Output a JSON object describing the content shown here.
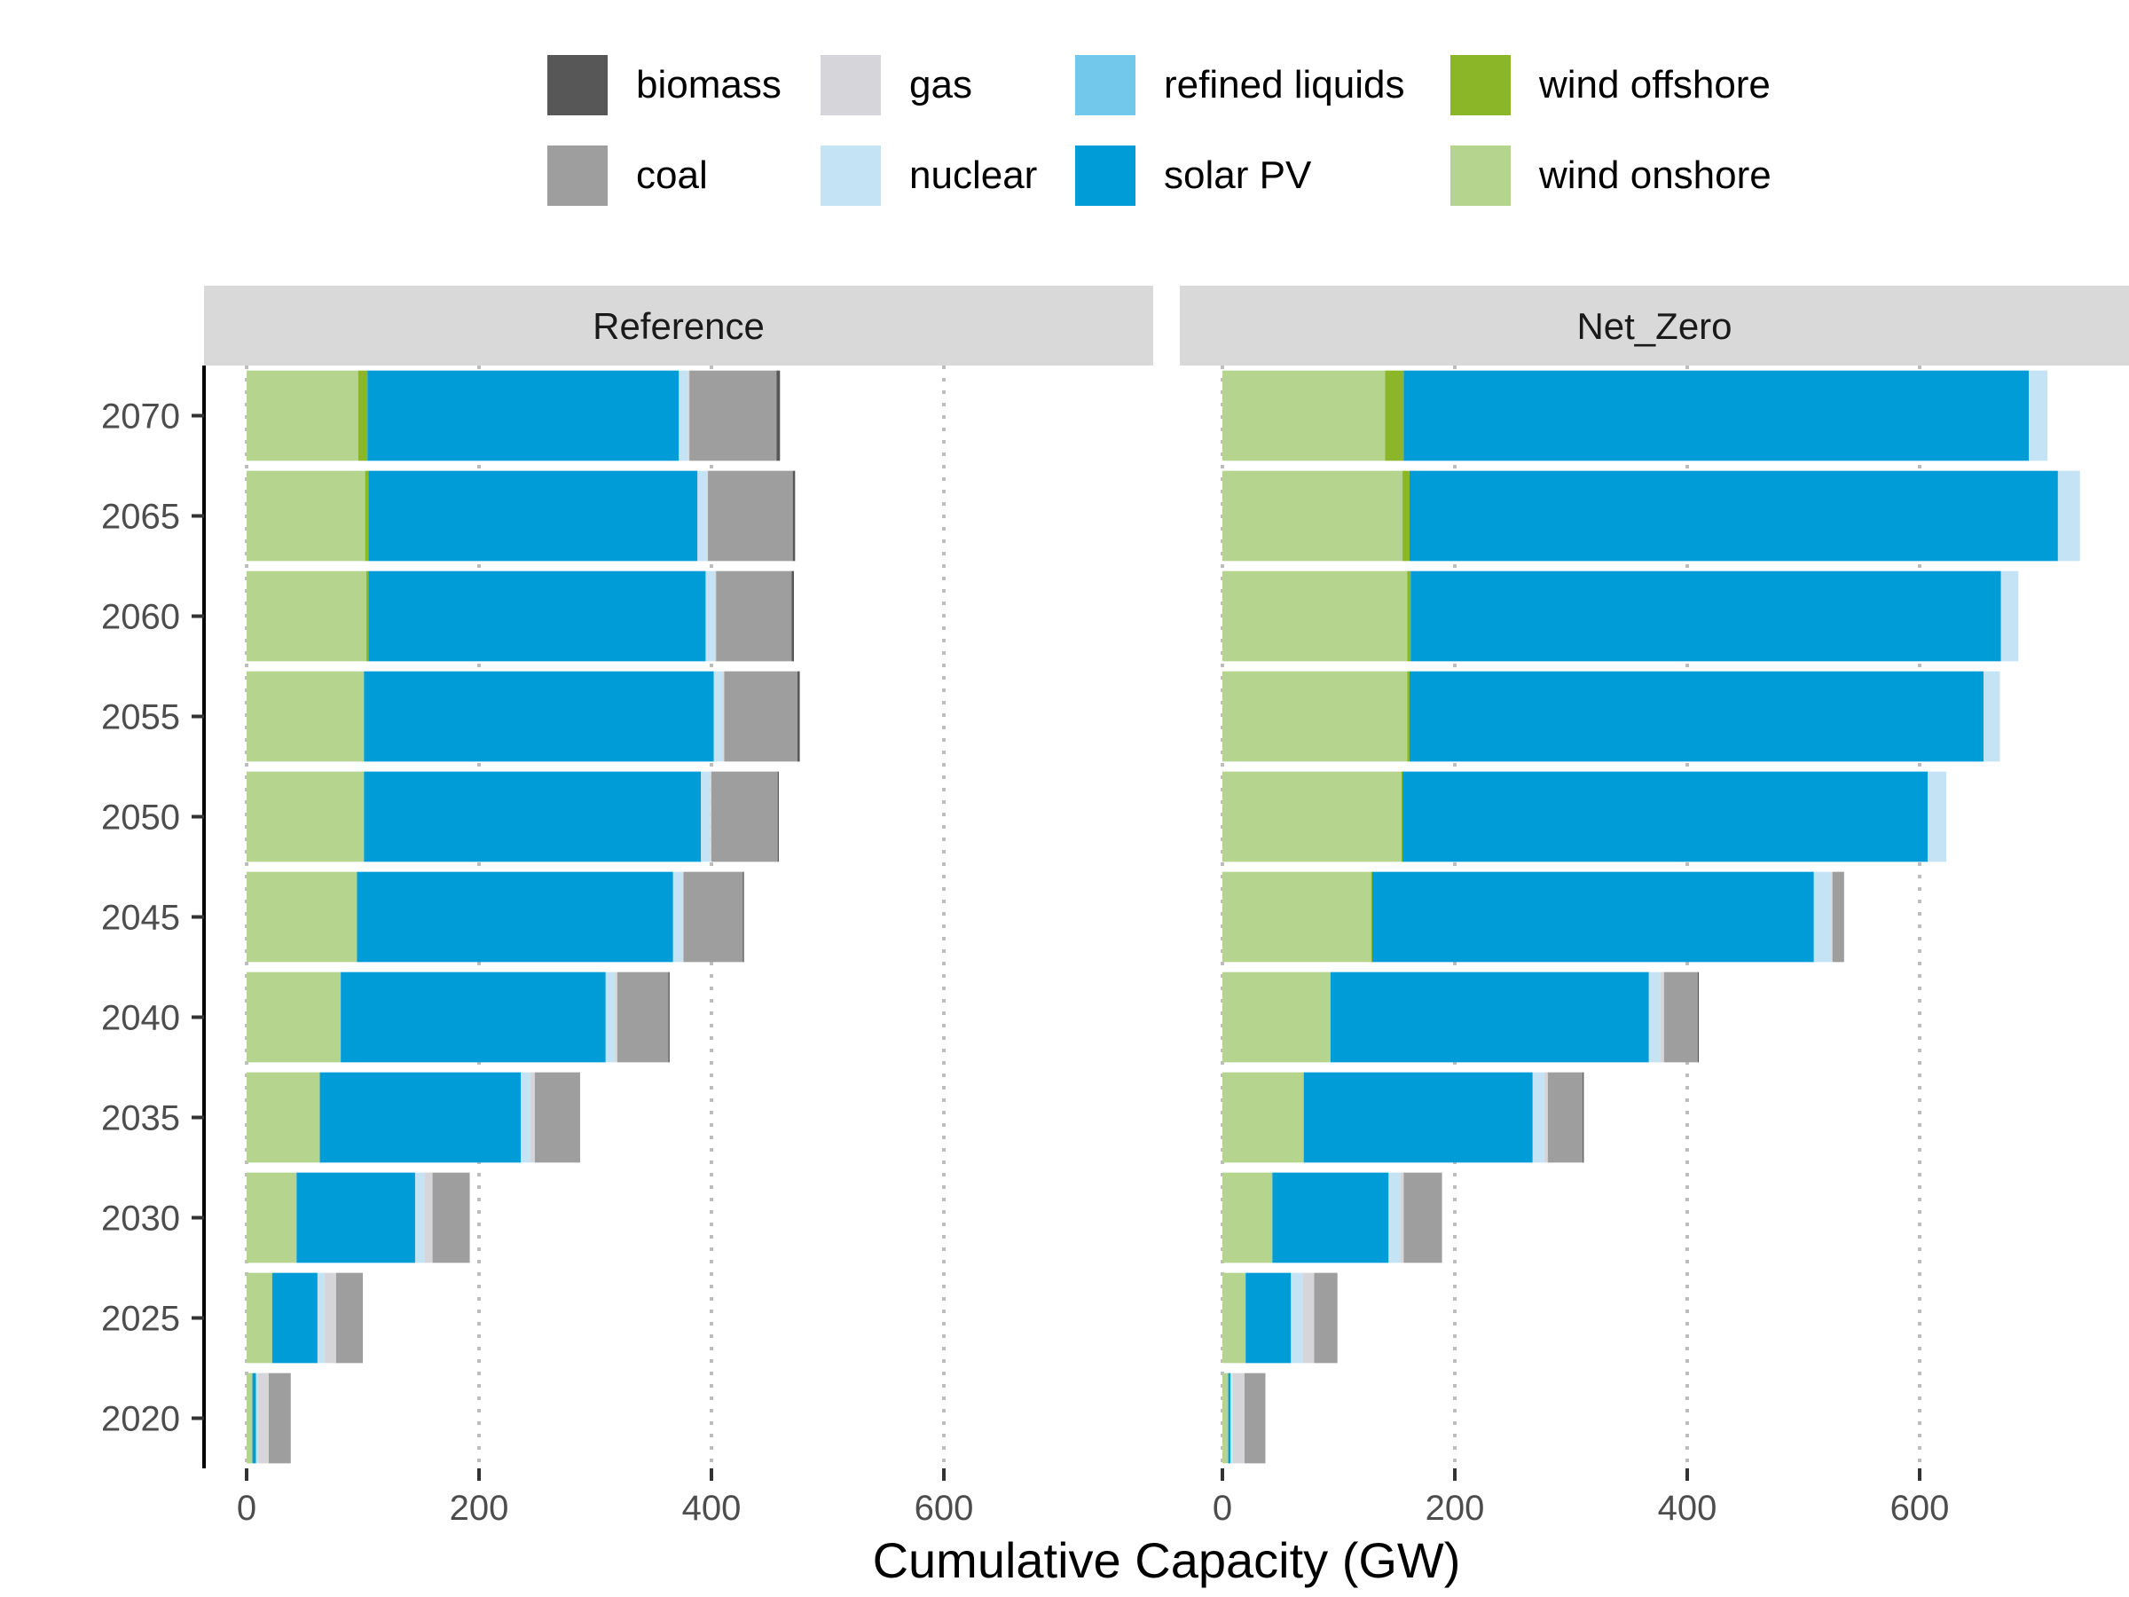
{
  "chart_data": {
    "type": "bar",
    "orientation": "horizontal",
    "stacked": true,
    "xlabel": "Cumulative Capacity (GW)",
    "ylabel": "",
    "xlim": [
      0,
      755
    ],
    "x_ticks": [
      "0",
      "200",
      "400",
      "600"
    ],
    "categories": [
      "2020",
      "2025",
      "2030",
      "2035",
      "2040",
      "2045",
      "2050",
      "2055",
      "2060",
      "2065",
      "2070"
    ],
    "grid": "vertical dotted",
    "legend_position": "top",
    "legend": [
      {
        "name": "biomass",
        "color": "#575757"
      },
      {
        "name": "coal",
        "color": "#9e9e9e"
      },
      {
        "name": "gas",
        "color": "#d6d6da"
      },
      {
        "name": "nuclear",
        "color": "#c4e4f5"
      },
      {
        "name": "refined liquids",
        "color": "#72c8ea"
      },
      {
        "name": "solar PV",
        "color": "#009cd8"
      },
      {
        "name": "wind offshore",
        "color": "#8ab627"
      },
      {
        "name": "wind onshore",
        "color": "#b5d58e"
      }
    ],
    "stack_order": [
      "wind onshore",
      "wind offshore",
      "solar PV",
      "refined liquids",
      "nuclear",
      "gas",
      "coal",
      "biomass"
    ],
    "panels": [
      {
        "title": "Reference",
        "series": [
          {
            "name": "wind onshore",
            "values": [
              5,
              22,
              43,
              63,
              81,
              95,
              101,
              101,
              103,
              102,
              96
            ]
          },
          {
            "name": "wind offshore",
            "values": [
              0,
              0,
              0,
              0,
              0,
              0,
              0,
              0,
              2,
              3,
              8
            ]
          },
          {
            "name": "solar PV",
            "values": [
              3,
              39,
              102,
              173,
              228,
              272,
              290,
              301,
              290,
              283,
              268
            ]
          },
          {
            "name": "refined liquids",
            "values": [
              0,
              0,
              0,
              0,
              0,
              0,
              0,
              0,
              0,
              0,
              0
            ]
          },
          {
            "name": "nuclear",
            "values": [
              2,
              6,
              8,
              8,
              8,
              8,
              8,
              8,
              8,
              8,
              8
            ]
          },
          {
            "name": "gas",
            "values": [
              9,
              10,
              7,
              4,
              2,
              1,
              1,
              1,
              1,
              1,
              1
            ]
          },
          {
            "name": "coal",
            "values": [
              19,
              23,
              32,
              39,
              44,
              51,
              57,
              63,
              65,
              73,
              75
            ]
          },
          {
            "name": "biomass",
            "values": [
              0,
              0,
              0,
              0,
              1,
              1,
              1,
              2,
              2,
              2,
              3
            ]
          }
        ]
      },
      {
        "title": "Net_Zero",
        "series": [
          {
            "name": "wind onshore",
            "values": [
              5,
              20,
              43,
              70,
              93,
              128,
              154,
              159,
              159,
              155,
              140
            ]
          },
          {
            "name": "wind offshore",
            "values": [
              0,
              0,
              0,
              0,
              0,
              1,
              1,
              2,
              3,
              6,
              16
            ]
          },
          {
            "name": "solar PV",
            "values": [
              2,
              39,
              100,
              197,
              274,
              380,
              452,
              494,
              508,
              558,
              538
            ]
          },
          {
            "name": "refined liquids",
            "values": [
              0,
              0,
              0,
              0,
              0,
              0,
              0,
              0,
              0,
              0,
              0
            ]
          },
          {
            "name": "nuclear",
            "values": [
              2,
              10,
              10,
              10,
              10,
              15,
              16,
              14,
              15,
              19,
              16
            ]
          },
          {
            "name": "gas",
            "values": [
              10,
              10,
              3,
              3,
              3,
              1,
              0,
              0,
              0,
              0,
              0
            ]
          },
          {
            "name": "coal",
            "values": [
              18,
              20,
              33,
              30,
              29,
              10,
              0,
              0,
              0,
              0,
              0
            ]
          },
          {
            "name": "biomass",
            "values": [
              0,
              0,
              0,
              1,
              1,
              0,
              0,
              0,
              0,
              0,
              0
            ]
          }
        ]
      }
    ]
  }
}
